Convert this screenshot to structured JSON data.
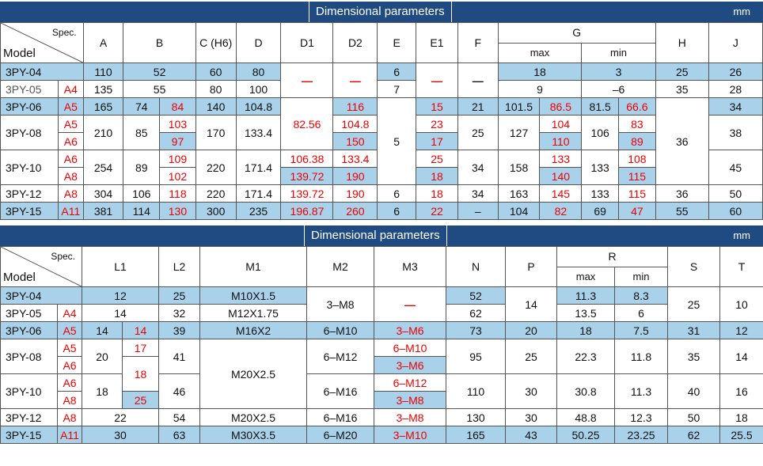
{
  "table1": {
    "title": "Dimensional parameters",
    "unit": "mm",
    "spec_label": "Spec.",
    "model_label": "Model",
    "col_headers": [
      "A",
      "B",
      "C (H6)",
      "D",
      "D1",
      "D2",
      "E",
      "E1",
      "F",
      "G",
      "H",
      "J"
    ],
    "g_sub": [
      "max",
      "min"
    ],
    "models": [
      "3PY-04",
      "3PY-05",
      "3PY-06",
      "3PY-08",
      "3PY-10",
      "3PY-12",
      "3PY-15"
    ],
    "codes": {
      "05": "A4",
      "06": "A5",
      "08a": "A5",
      "08b": "A6",
      "10a": "A6",
      "10b": "A8",
      "12": "A8",
      "15": "A11"
    },
    "rows": {
      "r04": {
        "A": "110",
        "B": "52",
        "C": "60",
        "D": "80",
        "D1": "—",
        "D2": "—",
        "E": "6",
        "E1": "—",
        "F": "—",
        "G": "18",
        "Gmin": "3",
        "H": "25",
        "J": "26"
      },
      "r05": {
        "A": "135",
        "B": "55",
        "C": "80",
        "D": "100",
        "E": "7",
        "G": "9",
        "Gmin": "–6",
        "H": "35",
        "J": "28"
      },
      "r06": {
        "A": "165",
        "B1": "74",
        "B2": "84",
        "C": "140",
        "D": "104.8",
        "D1": "82.56",
        "D2": "116",
        "E1": "15",
        "F": "21",
        "Gmax1": "101.5",
        "Gmax2": "86.5",
        "Gmin1": "81.5",
        "Gmin2": "66.6",
        "J": "34"
      },
      "r08": {
        "A": "210",
        "B1": "85",
        "B2a": "103",
        "B2b": "97",
        "C": "170",
        "D": "133.4",
        "D2a": "104.8",
        "D2b": "150",
        "E": "5",
        "E1a": "23",
        "E1b": "17",
        "F": "25",
        "Gmax1": "127",
        "Gmax2a": "104",
        "Gmax2b": "110",
        "Gmin1": "106",
        "Gmin2a": "83",
        "Gmin2b": "89",
        "H": "36",
        "J": "38"
      },
      "r10": {
        "A": "254",
        "B1": "89",
        "B2a": "109",
        "B2b": "102",
        "C": "220",
        "D": "171.4",
        "D1a": "106.38",
        "D1b": "139.72",
        "D2a": "133.4",
        "D2b": "190",
        "E1a": "25",
        "E1b": "18",
        "F": "34",
        "Gmax1": "158",
        "Gmax2a": "133",
        "Gmax2b": "140",
        "Gmin1": "133",
        "Gmin2a": "108",
        "Gmin2b": "115",
        "J": "45"
      },
      "r12": {
        "A": "304",
        "B1": "106",
        "B2": "118",
        "C": "220",
        "D": "171.4",
        "D1": "139.72",
        "D2": "190",
        "E": "6",
        "E1": "18",
        "F": "34",
        "Gmax1": "163",
        "Gmax2": "145",
        "Gmin1": "133",
        "Gmin2": "115",
        "H": "36",
        "J": "50"
      },
      "r15": {
        "A": "381",
        "B1": "114",
        "B2": "130",
        "C": "300",
        "D": "235",
        "D1": "196.87",
        "D2": "260",
        "E": "6",
        "E1": "22",
        "F": "–",
        "Gmax1": "104",
        "Gmax2": "82",
        "Gmin1": "69",
        "Gmin2": "47",
        "H": "55",
        "J": "60"
      }
    }
  },
  "table2": {
    "title": "Dimensional parameters",
    "unit": "mm",
    "spec_label": "Spec.",
    "model_label": "Model",
    "col_headers": [
      "L1",
      "L2",
      "M1",
      "M2",
      "M3",
      "N",
      "P",
      "R",
      "S",
      "T"
    ],
    "r_sub": [
      "max",
      "min"
    ],
    "rows": {
      "r04": {
        "L1": "12",
        "L2": "25",
        "M1": "M10X1.5",
        "M2": "3–M8",
        "M3": "—",
        "N": "52",
        "P": "14",
        "Rmax": "11.3",
        "Rmin": "8.3",
        "S": "25",
        "T": "10"
      },
      "r05": {
        "L1": "14",
        "L2": "32",
        "M1": "M12X1.75",
        "N": "62",
        "Rmax": "13.5",
        "Rmin": "6"
      },
      "r06": {
        "L1a": "14",
        "L1b": "14",
        "L2": "39",
        "M1": "M16X2",
        "M2": "6–M10",
        "M3": "3–M6",
        "N": "73",
        "P": "20",
        "Rmax": "18",
        "Rmin": "7.5",
        "S": "31",
        "T": "12"
      },
      "r08": {
        "L1a": "20",
        "L1b1": "17",
        "L1b2": "18",
        "L2": "41",
        "M1": "M20X2.5",
        "M2": "6–M12",
        "M3a": "6–M10",
        "M3b": "3–M6",
        "N": "95",
        "P": "25",
        "Rmax": "22.3",
        "Rmin": "11.8",
        "S": "35",
        "T": "14"
      },
      "r10": {
        "L1a": "18",
        "L1b": "25",
        "L2": "46",
        "M2": "6–M16",
        "M3a": "6–M12",
        "M3b": "3–M8",
        "N": "110",
        "P": "30",
        "Rmax": "30.8",
        "Rmin": "11.3",
        "S": "40",
        "T": "16"
      },
      "r12": {
        "L1": "22",
        "L2": "54",
        "M1": "M20X2.5",
        "M2": "6–M16",
        "M3": "3–M8",
        "N": "130",
        "P": "30",
        "Rmax": "48.8",
        "Rmin": "12.3",
        "S": "50",
        "T": "18"
      },
      "r15": {
        "L1": "30",
        "L2": "63",
        "M1": "M30X3.5",
        "M2": "6–M20",
        "M3": "3–M10",
        "N": "165",
        "P": "43",
        "Rmax": "50.25",
        "Rmin": "23.25",
        "S": "62",
        "T": "25.5"
      }
    }
  }
}
